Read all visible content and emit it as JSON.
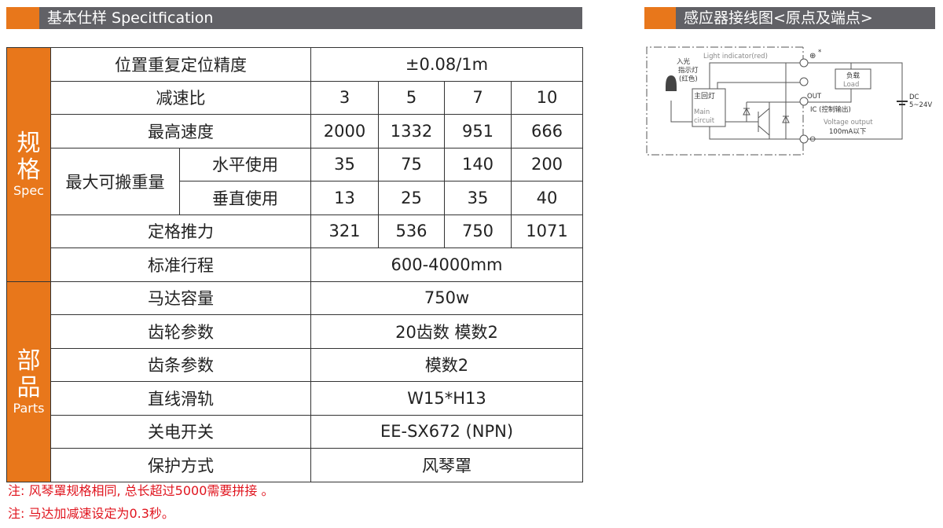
{
  "spec_header": {
    "title": "基本仕样 Specitfication"
  },
  "wiring_header": {
    "title": "感应器接线图<原点及端点>"
  },
  "sections": {
    "spec": {
      "cn": "规格",
      "en": "Spec"
    },
    "parts": {
      "cn": "部品",
      "en": "Parts"
    }
  },
  "rows": {
    "repeat": {
      "label": "位置重复定位精度",
      "value": "±0.08/1m"
    },
    "ratio": {
      "label": "减速比",
      "values": [
        "3",
        "5",
        "7",
        "10"
      ]
    },
    "speed": {
      "label": "最高速度",
      "values": [
        "2000",
        "1332",
        "951",
        "666"
      ]
    },
    "payload": {
      "label": "最大可搬重量",
      "horizontal": {
        "label": "水平使用",
        "values": [
          "35",
          "75",
          "140",
          "200"
        ]
      },
      "vertical": {
        "label": "垂直使用",
        "values": [
          "13",
          "25",
          "35",
          "40"
        ]
      }
    },
    "thrust": {
      "label": "定格推力",
      "values": [
        "321",
        "536",
        "750",
        "1071"
      ]
    },
    "stroke": {
      "label": "标准行程",
      "value": "600-4000mm"
    },
    "motor": {
      "label": "马达容量",
      "value": "750w"
    },
    "gear": {
      "label": "齿轮参数",
      "value": "20齿数  模数2"
    },
    "rack": {
      "label": "齿条参数",
      "value": "模数2"
    },
    "rail": {
      "label": "直线滑轨",
      "value": "W15*H13"
    },
    "switch": {
      "label": "关电开关",
      "value": "EE-SX672 (NPN)"
    },
    "protect": {
      "label": "保护方式",
      "value": "风琴罩"
    }
  },
  "notes": [
    "注: 风琴罩规格相同, 总长超过5000需要拼接 。",
    "注: 马达加减速设定为0.3秒。"
  ],
  "diagram": {
    "light_indicator": "Light indicator(red)",
    "led_label": [
      "入光",
      "指示灯",
      "(红色)"
    ],
    "main_cn": "主回灯",
    "main_en": [
      "Main",
      "circuit"
    ],
    "out": "OUT",
    "ic": "IC (控制输出)",
    "voltage": "Voltage output",
    "current": "100mA以下",
    "load_cn": "负载",
    "load_en": "Load",
    "dc": "DC",
    "dc_v": "5~24V",
    "star": "*"
  },
  "colors": {
    "accent": "#e8771b",
    "header": "#616166",
    "note": "#e0141e"
  }
}
